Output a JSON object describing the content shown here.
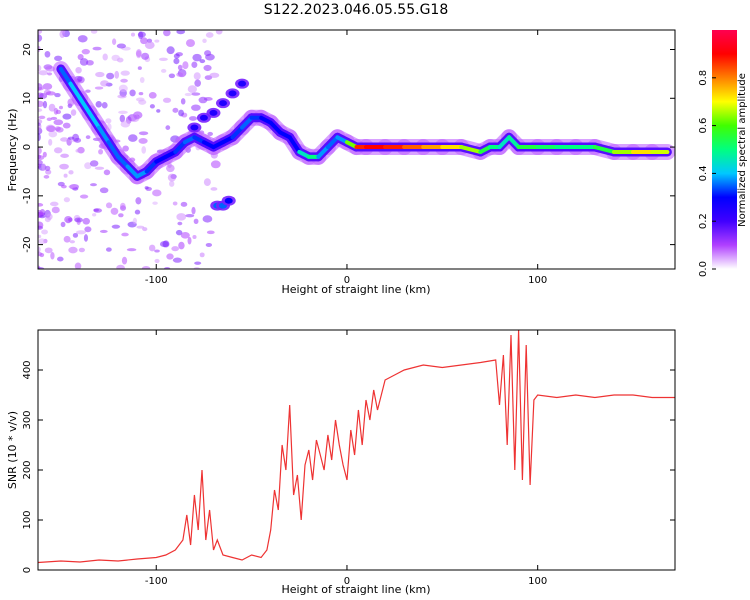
{
  "figure": {
    "title": "S122.2023.046.05.55.G18"
  },
  "chart_data": [
    {
      "type": "heatmap",
      "title": "S122.2023.046.05.55.G18",
      "xlabel": "Height of straight line (km)",
      "ylabel": "Frequency (Hz)",
      "xlim": [
        -162,
        172
      ],
      "ylim": [
        -25,
        24
      ],
      "xticks": [
        -100,
        0,
        100
      ],
      "yticks": [
        -20,
        -10,
        0,
        10,
        20
      ],
      "colorbar": {
        "label": "Normalized spectral amplitude",
        "range": [
          0,
          1
        ],
        "ticks": [
          0.0,
          0.2,
          0.4,
          0.6,
          0.8
        ],
        "colormap": [
          "#ffffff",
          "#b040ff",
          "#4000ff",
          "#0000ff",
          "#00c8ff",
          "#00ff80",
          "#40ff00",
          "#ffff00",
          "#ff8000",
          "#ff0000",
          "#ff0050"
        ]
      },
      "ridge": [
        {
          "x": -150,
          "f": 16,
          "a": 0.3
        },
        {
          "x": -145,
          "f": 13,
          "a": 0.4
        },
        {
          "x": -140,
          "f": 10,
          "a": 0.4
        },
        {
          "x": -135,
          "f": 7,
          "a": 0.4
        },
        {
          "x": -130,
          "f": 4,
          "a": 0.4
        },
        {
          "x": -125,
          "f": 1,
          "a": 0.35
        },
        {
          "x": -120,
          "f": -2,
          "a": 0.35
        },
        {
          "x": -115,
          "f": -4,
          "a": 0.35
        },
        {
          "x": -110,
          "f": -6,
          "a": 0.4
        },
        {
          "x": -105,
          "f": -5,
          "a": 0.35
        },
        {
          "x": -100,
          "f": -3,
          "a": 0.3
        },
        {
          "x": -95,
          "f": -2,
          "a": 0.3
        },
        {
          "x": -90,
          "f": -1,
          "a": 0.3
        },
        {
          "x": -85,
          "f": 1,
          "a": 0.35
        },
        {
          "x": -80,
          "f": 2,
          "a": 0.35
        },
        {
          "x": -75,
          "f": 1,
          "a": 0.3
        },
        {
          "x": -70,
          "f": 0,
          "a": 0.3
        },
        {
          "x": -65,
          "f": 1,
          "a": 0.3
        },
        {
          "x": -60,
          "f": 2,
          "a": 0.3
        },
        {
          "x": -55,
          "f": 4,
          "a": 0.35
        },
        {
          "x": -50,
          "f": 6,
          "a": 0.35
        },
        {
          "x": -45,
          "f": 6,
          "a": 0.3
        },
        {
          "x": -40,
          "f": 5,
          "a": 0.3
        },
        {
          "x": -35,
          "f": 3,
          "a": 0.3
        },
        {
          "x": -30,
          "f": 2,
          "a": 0.3
        },
        {
          "x": -25,
          "f": -1,
          "a": 0.3
        },
        {
          "x": -20,
          "f": -2,
          "a": 0.6
        },
        {
          "x": -15,
          "f": -2,
          "a": 0.4
        },
        {
          "x": -10,
          "f": 0,
          "a": 0.35
        },
        {
          "x": -5,
          "f": 2,
          "a": 0.35
        },
        {
          "x": 0,
          "f": 1,
          "a": 0.4
        },
        {
          "x": 5,
          "f": 0,
          "a": 0.85
        },
        {
          "x": 10,
          "f": 0,
          "a": 0.9
        },
        {
          "x": 20,
          "f": 0,
          "a": 0.9
        },
        {
          "x": 30,
          "f": 0,
          "a": 0.85
        },
        {
          "x": 40,
          "f": 0,
          "a": 0.8
        },
        {
          "x": 50,
          "f": 0,
          "a": 0.75
        },
        {
          "x": 60,
          "f": 0,
          "a": 0.7
        },
        {
          "x": 70,
          "f": -1,
          "a": 0.6
        },
        {
          "x": 75,
          "f": 0,
          "a": 0.5
        },
        {
          "x": 80,
          "f": 0,
          "a": 0.5
        },
        {
          "x": 85,
          "f": 2,
          "a": 0.4
        },
        {
          "x": 90,
          "f": 0,
          "a": 0.55
        },
        {
          "x": 100,
          "f": 0,
          "a": 0.55
        },
        {
          "x": 110,
          "f": 0,
          "a": 0.5
        },
        {
          "x": 120,
          "f": 0,
          "a": 0.5
        },
        {
          "x": 130,
          "f": 0,
          "a": 0.5
        },
        {
          "x": 140,
          "f": -1,
          "a": 0.6
        },
        {
          "x": 150,
          "f": -1,
          "a": 0.7
        },
        {
          "x": 160,
          "f": -1,
          "a": 0.75
        },
        {
          "x": 168,
          "f": -1,
          "a": 0.6
        }
      ],
      "branches": [
        {
          "x": -80,
          "f": 4,
          "a": 0.25
        },
        {
          "x": -75,
          "f": 6,
          "a": 0.25
        },
        {
          "x": -70,
          "f": 7,
          "a": 0.25
        },
        {
          "x": -65,
          "f": 9,
          "a": 0.25
        },
        {
          "x": -60,
          "f": 11,
          "a": 0.25
        },
        {
          "x": -55,
          "f": 13,
          "a": 0.25
        },
        {
          "x": -68,
          "f": -12,
          "a": 0.35
        },
        {
          "x": -65,
          "f": -12,
          "a": 0.35
        },
        {
          "x": -62,
          "f": -11,
          "a": 0.3
        }
      ]
    },
    {
      "type": "line",
      "xlabel": "Height of straight line (km)",
      "ylabel": "SNR (10 * v/v)",
      "xlim": [
        -162,
        172
      ],
      "ylim": [
        0,
        480
      ],
      "xticks": [
        -100,
        0,
        100
      ],
      "yticks": [
        0,
        100,
        200,
        300,
        400
      ],
      "series": [
        {
          "color": "#ee3333",
          "x": [
            -162,
            -150,
            -140,
            -130,
            -120,
            -110,
            -100,
            -95,
            -90,
            -86,
            -84,
            -82,
            -80,
            -78,
            -76,
            -74,
            -72,
            -70,
            -68,
            -65,
            -60,
            -55,
            -50,
            -45,
            -42,
            -40,
            -38,
            -36,
            -34,
            -32,
            -30,
            -28,
            -26,
            -24,
            -22,
            -20,
            -18,
            -16,
            -14,
            -12,
            -10,
            -8,
            -6,
            -4,
            -2,
            0,
            2,
            4,
            6,
            8,
            10,
            12,
            14,
            16,
            18,
            20,
            25,
            30,
            40,
            50,
            60,
            70,
            78,
            80,
            82,
            84,
            86,
            88,
            90,
            92,
            94,
            96,
            98,
            100,
            110,
            120,
            130,
            140,
            150,
            160,
            172
          ],
          "y": [
            15,
            18,
            16,
            20,
            18,
            22,
            25,
            30,
            40,
            60,
            110,
            50,
            150,
            80,
            200,
            60,
            120,
            40,
            60,
            30,
            25,
            20,
            30,
            25,
            40,
            80,
            160,
            120,
            250,
            200,
            330,
            150,
            190,
            100,
            210,
            240,
            180,
            260,
            230,
            200,
            270,
            220,
            300,
            250,
            210,
            180,
            280,
            230,
            320,
            250,
            340,
            300,
            360,
            320,
            350,
            380,
            390,
            400,
            410,
            405,
            410,
            415,
            420,
            330,
            430,
            250,
            470,
            200,
            480,
            180,
            450,
            170,
            340,
            350,
            345,
            350,
            345,
            350,
            350,
            345,
            345
          ]
        }
      ]
    }
  ]
}
